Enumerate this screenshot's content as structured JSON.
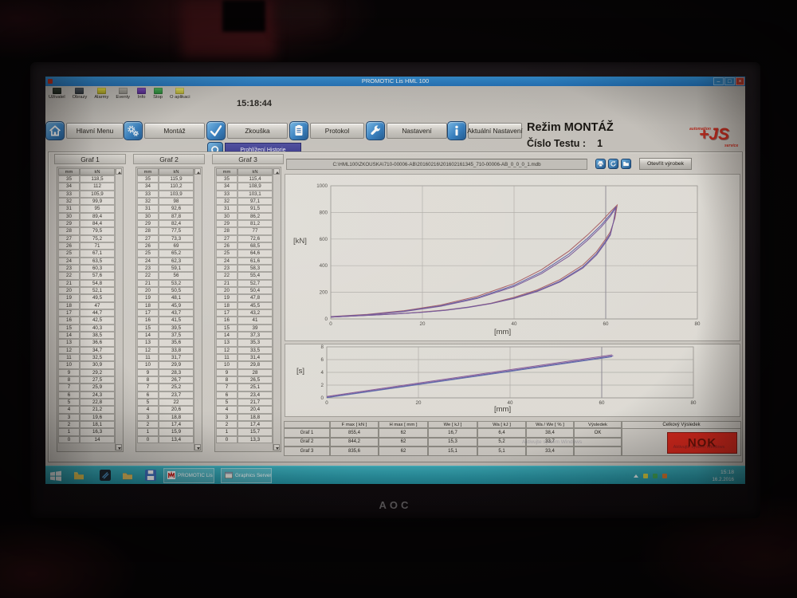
{
  "bg": {
    "monitor_brand": "AOC"
  },
  "window": {
    "title": "PROMOTIC Lis HML 100",
    "minimize": "–",
    "maximize": "□",
    "close": "×"
  },
  "toolbar": {
    "time": "15:18:44",
    "items": [
      {
        "label": "Uživatel",
        "icon": "user-icon"
      },
      {
        "label": "Obrazy",
        "icon": "screens-icon"
      },
      {
        "label": "Alarmy",
        "icon": "alarm-icon"
      },
      {
        "label": "Eventy",
        "icon": "events-icon"
      },
      {
        "label": "Info",
        "icon": "info-icon"
      },
      {
        "label": "Stop",
        "icon": "stop-icon"
      },
      {
        "label": "O aplikaci",
        "icon": "about-icon"
      }
    ]
  },
  "nav": {
    "buttons": [
      {
        "label": "Hlavní Menu",
        "icon": "home-icon"
      },
      {
        "label": "Montáž",
        "icon": "gears-icon"
      },
      {
        "label": "Zkouška",
        "icon": "check-icon"
      },
      {
        "label": "Protokol",
        "icon": "protocol-icon"
      },
      {
        "label": "Nastavení",
        "icon": "wrench-icon"
      },
      {
        "label": "Aktuální Nastavení",
        "icon": "info-circle-icon"
      }
    ],
    "history_button": {
      "label": "Prohlížení Historie",
      "icon": "magnifier-icon"
    }
  },
  "status": {
    "mode": "Režim MONTÁŽ",
    "test_label": "Číslo Testu :",
    "test_number": "1"
  },
  "logo": {
    "top": "automation",
    "main": "+JS",
    "bottom": "service"
  },
  "file_bar": {
    "path": "C:\\HML100\\ZKOUSKA\\710-00006-AB\\20160216\\201602161345_710-00006-AB_0_0_0_1.mdb",
    "buttons": [
      {
        "icon": "print-icon"
      },
      {
        "icon": "refresh-icon"
      },
      {
        "icon": "open-folder-icon"
      }
    ],
    "open_label": "Otevřít výrobek"
  },
  "tables": [
    {
      "title": "Graf 1",
      "cols": [
        "mm",
        "kN"
      ],
      "rows": [
        [
          "35",
          "118,5"
        ],
        [
          "34",
          "112"
        ],
        [
          "33",
          "105,9"
        ],
        [
          "32",
          "99,9"
        ],
        [
          "31",
          "95"
        ],
        [
          "30",
          "89,4"
        ],
        [
          "29",
          "84,4"
        ],
        [
          "28",
          "79,5"
        ],
        [
          "27",
          "75,2"
        ],
        [
          "26",
          "71"
        ],
        [
          "25",
          "67,1"
        ],
        [
          "24",
          "63,5"
        ],
        [
          "23",
          "60,3"
        ],
        [
          "22",
          "57,6"
        ],
        [
          "21",
          "54,8"
        ],
        [
          "20",
          "52,1"
        ],
        [
          "19",
          "49,5"
        ],
        [
          "18",
          "47"
        ],
        [
          "17",
          "44,7"
        ],
        [
          "16",
          "42,5"
        ],
        [
          "15",
          "40,3"
        ],
        [
          "14",
          "38,5"
        ],
        [
          "13",
          "36,6"
        ],
        [
          "12",
          "34,7"
        ],
        [
          "11",
          "32,5"
        ],
        [
          "10",
          "30,9"
        ],
        [
          "9",
          "29,2"
        ],
        [
          "8",
          "27,5"
        ],
        [
          "7",
          "25,9"
        ],
        [
          "6",
          "24,3"
        ],
        [
          "5",
          "22,8"
        ],
        [
          "4",
          "21,2"
        ],
        [
          "3",
          "19,6"
        ],
        [
          "2",
          "18,1"
        ],
        [
          "1",
          "16,3"
        ],
        [
          "0",
          "14"
        ]
      ]
    },
    {
      "title": "Graf 2",
      "cols": [
        "mm",
        "kN"
      ],
      "rows": [
        [
          "35",
          "115,9"
        ],
        [
          "34",
          "110,2"
        ],
        [
          "33",
          "103,9"
        ],
        [
          "32",
          "98"
        ],
        [
          "31",
          "92,6"
        ],
        [
          "30",
          "87,8"
        ],
        [
          "29",
          "82,4"
        ],
        [
          "28",
          "77,5"
        ],
        [
          "27",
          "73,3"
        ],
        [
          "26",
          "69"
        ],
        [
          "25",
          "65,2"
        ],
        [
          "24",
          "62,3"
        ],
        [
          "23",
          "59,1"
        ],
        [
          "22",
          "56"
        ],
        [
          "21",
          "53,2"
        ],
        [
          "20",
          "50,5"
        ],
        [
          "19",
          "48,1"
        ],
        [
          "18",
          "45,9"
        ],
        [
          "17",
          "43,7"
        ],
        [
          "16",
          "41,5"
        ],
        [
          "15",
          "39,5"
        ],
        [
          "14",
          "37,5"
        ],
        [
          "13",
          "35,6"
        ],
        [
          "12",
          "33,8"
        ],
        [
          "11",
          "31,7"
        ],
        [
          "10",
          "29,9"
        ],
        [
          "9",
          "28,3"
        ],
        [
          "8",
          "26,7"
        ],
        [
          "7",
          "25,2"
        ],
        [
          "6",
          "23,7"
        ],
        [
          "5",
          "22"
        ],
        [
          "4",
          "20,6"
        ],
        [
          "3",
          "18,8"
        ],
        [
          "2",
          "17,4"
        ],
        [
          "1",
          "15,9"
        ],
        [
          "0",
          "13,4"
        ]
      ]
    },
    {
      "title": "Graf 3",
      "cols": [
        "mm",
        "kN"
      ],
      "rows": [
        [
          "35",
          "115,4"
        ],
        [
          "34",
          "108,9"
        ],
        [
          "33",
          "103,1"
        ],
        [
          "32",
          "97,1"
        ],
        [
          "31",
          "91,5"
        ],
        [
          "30",
          "86,2"
        ],
        [
          "29",
          "81,2"
        ],
        [
          "28",
          "77"
        ],
        [
          "27",
          "72,6"
        ],
        [
          "26",
          "68,5"
        ],
        [
          "25",
          "64,6"
        ],
        [
          "24",
          "61,6"
        ],
        [
          "23",
          "58,3"
        ],
        [
          "22",
          "55,4"
        ],
        [
          "21",
          "52,7"
        ],
        [
          "20",
          "50,4"
        ],
        [
          "19",
          "47,8"
        ],
        [
          "18",
          "45,5"
        ],
        [
          "17",
          "43,2"
        ],
        [
          "16",
          "41"
        ],
        [
          "15",
          "39"
        ],
        [
          "14",
          "37,3"
        ],
        [
          "13",
          "35,3"
        ],
        [
          "12",
          "33,5"
        ],
        [
          "11",
          "31,4"
        ],
        [
          "10",
          "29,8"
        ],
        [
          "9",
          "28"
        ],
        [
          "8",
          "26,5"
        ],
        [
          "7",
          "25,1"
        ],
        [
          "6",
          "23,4"
        ],
        [
          "5",
          "21,7"
        ],
        [
          "4",
          "20,4"
        ],
        [
          "3",
          "18,8"
        ],
        [
          "2",
          "17,4"
        ],
        [
          "1",
          "15,7"
        ],
        [
          "0",
          "13,3"
        ]
      ]
    }
  ],
  "chart_data": [
    {
      "type": "line",
      "title": "",
      "xlabel": "[mm]",
      "ylabel": "[kN]",
      "xlim": [
        0,
        80
      ],
      "ylim": [
        0,
        1000
      ],
      "xticks": [
        0,
        20,
        40,
        60,
        80
      ],
      "yticks": [
        0,
        200,
        400,
        600,
        800,
        1000
      ],
      "grid": true,
      "legend": "none",
      "dark_grid_x": 60,
      "series": [
        {
          "name": "Graf 1",
          "color": "#a85a62",
          "points": [
            [
              0,
              18
            ],
            [
              8,
              35
            ],
            [
              16,
              62
            ],
            [
              24,
              105
            ],
            [
              32,
              170
            ],
            [
              40,
              265
            ],
            [
              46,
              370
            ],
            [
              52,
              510
            ],
            [
              56,
              630
            ],
            [
              59,
              730
            ],
            [
              61,
              805
            ],
            [
              62.5,
              855
            ],
            [
              62,
              755
            ],
            [
              61,
              655
            ],
            [
              60,
              600
            ],
            [
              58,
              505
            ],
            [
              55,
              405
            ],
            [
              50,
              295
            ],
            [
              45,
              218
            ],
            [
              40,
              163
            ],
            [
              35,
              118.5
            ],
            [
              30,
              89.4
            ],
            [
              25,
              67.1
            ],
            [
              20,
              52.1
            ],
            [
              15,
              40.3
            ],
            [
              10,
              30.9
            ],
            [
              5,
              22.8
            ],
            [
              0,
              14
            ]
          ]
        },
        {
          "name": "Graf 2",
          "color": "#5a5aa8",
          "points": [
            [
              0,
              16
            ],
            [
              8,
              32
            ],
            [
              16,
              58
            ],
            [
              24,
              99
            ],
            [
              32,
              160
            ],
            [
              40,
              252
            ],
            [
              46,
              352
            ],
            [
              52,
              488
            ],
            [
              56,
              605
            ],
            [
              59,
              705
            ],
            [
              61,
              785
            ],
            [
              62.3,
              844
            ],
            [
              61.8,
              740
            ],
            [
              61,
              640
            ],
            [
              60,
              585
            ],
            [
              58,
              490
            ],
            [
              55,
              390
            ],
            [
              50,
              283
            ],
            [
              45,
              210
            ],
            [
              40,
              156
            ],
            [
              35,
              115.9
            ],
            [
              30,
              87.8
            ],
            [
              25,
              65.2
            ],
            [
              20,
              50.5
            ],
            [
              15,
              39.5
            ],
            [
              10,
              29.9
            ],
            [
              5,
              22
            ],
            [
              0,
              13.4
            ]
          ]
        },
        {
          "name": "Graf 3",
          "color": "#75549a",
          "points": [
            [
              0,
              15
            ],
            [
              8,
              30
            ],
            [
              16,
              55
            ],
            [
              24,
              95
            ],
            [
              32,
              154
            ],
            [
              40,
              243
            ],
            [
              46,
              340
            ],
            [
              52,
              472
            ],
            [
              56,
              590
            ],
            [
              59,
              690
            ],
            [
              61,
              772
            ],
            [
              62.2,
              836
            ],
            [
              61.7,
              730
            ],
            [
              61,
              630
            ],
            [
              60,
              575
            ],
            [
              58,
              480
            ],
            [
              55,
              382
            ],
            [
              50,
              277
            ],
            [
              45,
              206
            ],
            [
              40,
              153
            ],
            [
              35,
              115.4
            ],
            [
              30,
              86.2
            ],
            [
              25,
              64.6
            ],
            [
              20,
              50.4
            ],
            [
              15,
              39
            ],
            [
              10,
              29.8
            ],
            [
              5,
              21.7
            ],
            [
              0,
              13.3
            ]
          ]
        }
      ]
    },
    {
      "type": "line",
      "title": "",
      "xlabel": "[mm]",
      "ylabel": "[s]",
      "xlim": [
        0,
        80
      ],
      "ylim": [
        0,
        8
      ],
      "xticks": [
        0,
        20,
        40,
        60,
        80
      ],
      "yticks": [
        0,
        2,
        4,
        6,
        8
      ],
      "grid": true,
      "legend": "none",
      "dark_grid_x": 60,
      "series": [
        {
          "name": "Graf 1",
          "color": "#6a5aa8",
          "points": [
            [
              0,
              0.1
            ],
            [
              62.5,
              6.6
            ]
          ]
        },
        {
          "name": "Graf 2",
          "color": "#8a5a9a",
          "points": [
            [
              0,
              0.22
            ],
            [
              62.3,
              6.75
            ]
          ]
        },
        {
          "name": "Graf 3",
          "color": "#5a6ab0",
          "points": [
            [
              0,
              0.03
            ],
            [
              62.2,
              6.45
            ]
          ]
        }
      ]
    }
  ],
  "summary": {
    "headers": [
      "",
      "F max  [ kN ]",
      "H max  [ mm ]",
      "We [ kJ ]",
      "Wa [ kJ ]",
      "Wa / We [ % ]",
      "Výsledek",
      "Celkový Výsledek"
    ],
    "rows": [
      [
        "Graf 1",
        "855,4",
        "62",
        "16,7",
        "6,4",
        "38,4",
        "OK"
      ],
      [
        "Graf 2",
        "844,2",
        "62",
        "15,3",
        "5,2",
        "33,7",
        ""
      ],
      [
        "Graf 3",
        "835,6",
        "62",
        "15,1",
        "5,1",
        "33,4",
        ""
      ]
    ],
    "overall_result": "NOK"
  },
  "watermark": "Aktivujte systém Windows",
  "taskbar": {
    "tasks": [
      {
        "label": "PROMOTIC Lis H...",
        "icon": "promotic-logo"
      },
      {
        "label": "Graphics Server",
        "icon": "app-window-icon"
      }
    ],
    "tray_time": "15:18",
    "tray_date": "16.2.2016"
  }
}
